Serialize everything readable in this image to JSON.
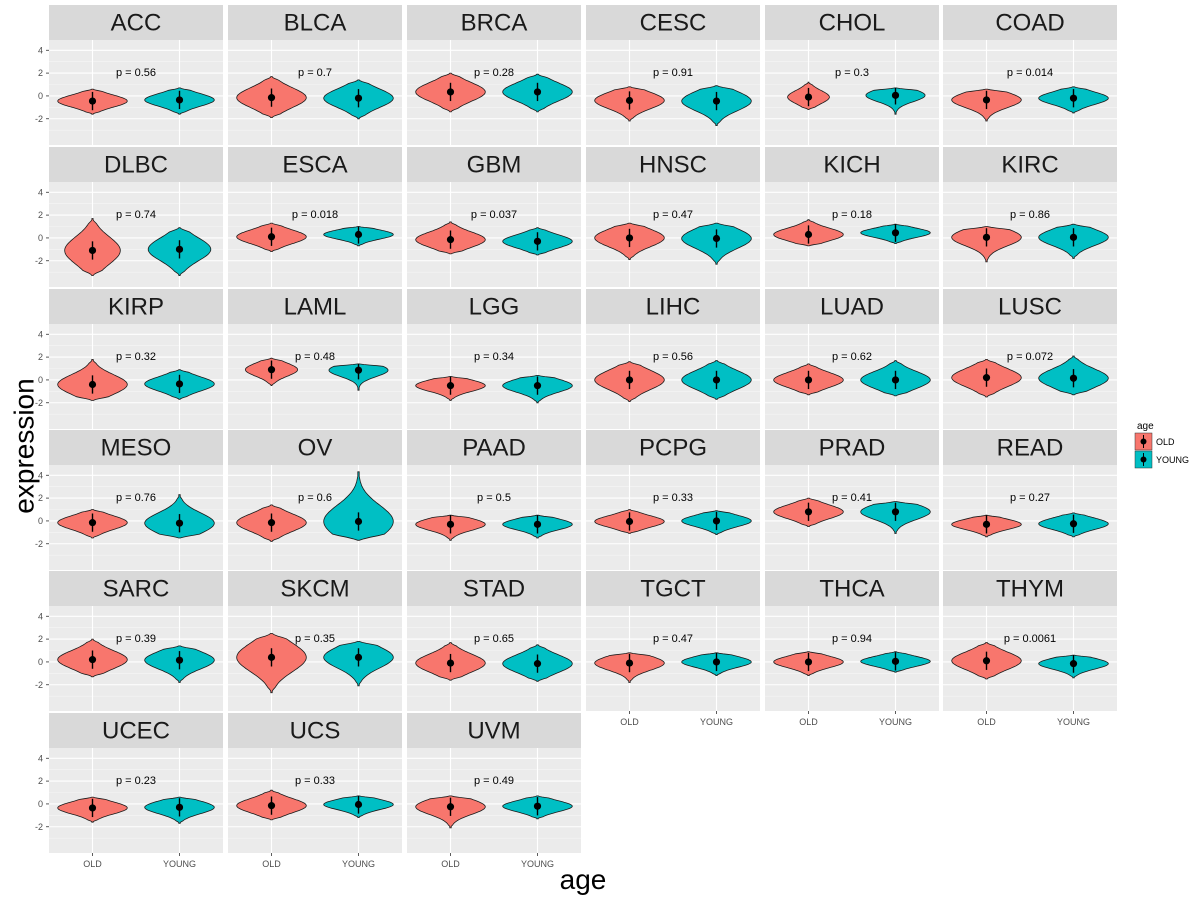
{
  "chart_data": {
    "type": "violin",
    "xlabel": "age",
    "ylabel": "expression",
    "ylim": [
      -4.3,
      4.9
    ],
    "yticks": [
      -2,
      0,
      2,
      4
    ],
    "ytick_labels": [
      "-2",
      "0",
      "2",
      "4"
    ],
    "categories": [
      "OLD",
      "YOUNG"
    ],
    "colors": {
      "OLD": "#F8766D",
      "YOUNG": "#00BFC4"
    },
    "legend": {
      "title": "age",
      "entries": [
        "OLD",
        "YOUNG"
      ],
      "position": "right"
    },
    "panels": [
      {
        "name": "ACC",
        "p": "p = 0.56",
        "old": {
          "median": -0.45,
          "min": -1.6,
          "max": 0.6,
          "width": 1.0
        },
        "young": {
          "median": -0.35,
          "min": -1.6,
          "max": 0.7,
          "width": 1.0
        }
      },
      {
        "name": "BLCA",
        "p": "p = 0.7",
        "old": {
          "median": -0.15,
          "min": -1.9,
          "max": 1.7,
          "width": 1.0
        },
        "young": {
          "median": -0.2,
          "min": -2.0,
          "max": 1.4,
          "width": 1.0
        }
      },
      {
        "name": "BRCA",
        "p": "p = 0.28",
        "old": {
          "median": 0.35,
          "min": -1.4,
          "max": 2.0,
          "width": 1.0
        },
        "young": {
          "median": 0.35,
          "min": -1.4,
          "max": 1.9,
          "width": 1.0
        }
      },
      {
        "name": "CESC",
        "p": "p = 0.91",
        "old": {
          "median": -0.4,
          "min": -2.2,
          "max": 0.8,
          "width": 1.0
        },
        "young": {
          "median": -0.45,
          "min": -2.6,
          "max": 0.9,
          "width": 1.0
        }
      },
      {
        "name": "CHOL",
        "p": "p = 0.3",
        "old": {
          "median": -0.1,
          "min": -1.2,
          "max": 1.2,
          "width": 0.6
        },
        "young": {
          "median": 0.05,
          "min": -1.6,
          "max": 0.7,
          "width": 0.85
        }
      },
      {
        "name": "COAD",
        "p": "p = 0.014",
        "old": {
          "median": -0.35,
          "min": -2.2,
          "max": 0.6,
          "width": 1.0
        },
        "young": {
          "median": -0.2,
          "min": -1.5,
          "max": 0.8,
          "width": 1.0
        }
      },
      {
        "name": "DLBC",
        "p": "p = 0.74",
        "old": {
          "median": -1.1,
          "min": -3.3,
          "max": 1.7,
          "width": 0.8
        },
        "young": {
          "median": -1.0,
          "min": -3.3,
          "max": 0.9,
          "width": 0.9
        }
      },
      {
        "name": "ESCA",
        "p": "p = 0.018",
        "old": {
          "median": 0.1,
          "min": -1.2,
          "max": 1.3,
          "width": 1.0
        },
        "young": {
          "median": 0.3,
          "min": -0.7,
          "max": 1.0,
          "width": 1.0
        }
      },
      {
        "name": "GBM",
        "p": "p = 0.037",
        "old": {
          "median": -0.15,
          "min": -1.4,
          "max": 1.4,
          "width": 1.0
        },
        "young": {
          "median": -0.3,
          "min": -1.5,
          "max": 0.9,
          "width": 1.0
        }
      },
      {
        "name": "HNSC",
        "p": "p = 0.47",
        "old": {
          "median": 0.0,
          "min": -1.9,
          "max": 1.3,
          "width": 1.0
        },
        "young": {
          "median": -0.05,
          "min": -2.3,
          "max": 1.3,
          "width": 1.0
        }
      },
      {
        "name": "KICH",
        "p": "p = 0.18",
        "old": {
          "median": 0.3,
          "min": -0.7,
          "max": 1.6,
          "width": 1.0
        },
        "young": {
          "median": 0.45,
          "min": -0.5,
          "max": 1.2,
          "width": 1.0
        }
      },
      {
        "name": "KIRC",
        "p": "p = 0.86",
        "old": {
          "median": 0.05,
          "min": -2.1,
          "max": 1.0,
          "width": 1.0
        },
        "young": {
          "median": 0.05,
          "min": -1.8,
          "max": 1.2,
          "width": 1.0
        }
      },
      {
        "name": "KIRP",
        "p": "p = 0.32",
        "old": {
          "median": -0.4,
          "min": -1.8,
          "max": 1.8,
          "width": 1.0
        },
        "young": {
          "median": -0.35,
          "min": -1.7,
          "max": 0.9,
          "width": 1.0
        }
      },
      {
        "name": "LAML",
        "p": "p = 0.48",
        "old": {
          "median": 0.9,
          "min": -0.5,
          "max": 1.9,
          "width": 0.75
        },
        "young": {
          "median": 0.85,
          "min": -0.9,
          "max": 1.4,
          "width": 0.85
        }
      },
      {
        "name": "LGG",
        "p": "p = 0.34",
        "old": {
          "median": -0.5,
          "min": -1.8,
          "max": 0.3,
          "width": 1.0
        },
        "young": {
          "median": -0.5,
          "min": -2.0,
          "max": 0.4,
          "width": 1.0
        }
      },
      {
        "name": "LIHC",
        "p": "p = 0.56",
        "old": {
          "median": 0.0,
          "min": -1.9,
          "max": 1.6,
          "width": 1.0
        },
        "young": {
          "median": 0.0,
          "min": -1.7,
          "max": 1.7,
          "width": 1.0
        }
      },
      {
        "name": "LUAD",
        "p": "p = 0.62",
        "old": {
          "median": 0.0,
          "min": -1.3,
          "max": 1.4,
          "width": 1.0
        },
        "young": {
          "median": 0.0,
          "min": -1.4,
          "max": 1.7,
          "width": 1.0
        }
      },
      {
        "name": "LUSC",
        "p": "p = 0.072",
        "old": {
          "median": 0.2,
          "min": -1.5,
          "max": 1.8,
          "width": 1.0
        },
        "young": {
          "median": 0.15,
          "min": -1.3,
          "max": 2.1,
          "width": 1.0
        }
      },
      {
        "name": "MESO",
        "p": "p = 0.76",
        "old": {
          "median": -0.15,
          "min": -1.5,
          "max": 1.0,
          "width": 1.0
        },
        "young": {
          "median": -0.2,
          "min": -1.5,
          "max": 2.3,
          "width": 1.0
        }
      },
      {
        "name": "OV",
        "p": "p = 0.6",
        "old": {
          "median": -0.15,
          "min": -1.8,
          "max": 1.4,
          "width": 1.0
        },
        "young": {
          "median": -0.05,
          "min": -1.7,
          "max": 4.3,
          "width": 1.0
        }
      },
      {
        "name": "PAAD",
        "p": "p = 0.5",
        "old": {
          "median": -0.3,
          "min": -1.7,
          "max": 0.5,
          "width": 1.0
        },
        "young": {
          "median": -0.3,
          "min": -1.5,
          "max": 0.5,
          "width": 1.0
        }
      },
      {
        "name": "PCPG",
        "p": "p = 0.33",
        "old": {
          "median": -0.05,
          "min": -1.1,
          "max": 1.0,
          "width": 1.0
        },
        "young": {
          "median": 0.0,
          "min": -1.2,
          "max": 0.9,
          "width": 1.0
        }
      },
      {
        "name": "PRAD",
        "p": "p = 0.41",
        "old": {
          "median": 0.8,
          "min": -0.5,
          "max": 2.0,
          "width": 1.0
        },
        "young": {
          "median": 0.8,
          "min": -1.1,
          "max": 1.7,
          "width": 1.0
        }
      },
      {
        "name": "READ",
        "p": "p = 0.27",
        "old": {
          "median": -0.3,
          "min": -1.4,
          "max": 0.5,
          "width": 1.0
        },
        "young": {
          "median": -0.25,
          "min": -1.4,
          "max": 0.7,
          "width": 1.0
        }
      },
      {
        "name": "SARC",
        "p": "p = 0.39",
        "old": {
          "median": 0.2,
          "min": -1.3,
          "max": 2.0,
          "width": 1.0
        },
        "young": {
          "median": 0.15,
          "min": -1.8,
          "max": 1.4,
          "width": 1.0
        }
      },
      {
        "name": "SKCM",
        "p": "p = 0.35",
        "old": {
          "median": 0.4,
          "min": -2.7,
          "max": 2.5,
          "width": 1.0
        },
        "young": {
          "median": 0.4,
          "min": -2.1,
          "max": 1.8,
          "width": 1.0
        }
      },
      {
        "name": "STAD",
        "p": "p = 0.65",
        "old": {
          "median": -0.1,
          "min": -1.6,
          "max": 1.7,
          "width": 1.0
        },
        "young": {
          "median": -0.15,
          "min": -1.7,
          "max": 1.5,
          "width": 1.0
        }
      },
      {
        "name": "TGCT",
        "p": "p = 0.47",
        "old": {
          "median": -0.1,
          "min": -1.8,
          "max": 0.8,
          "width": 1.0
        },
        "young": {
          "median": 0.0,
          "min": -1.2,
          "max": 0.8,
          "width": 1.0
        }
      },
      {
        "name": "THCA",
        "p": "p = 0.94",
        "old": {
          "median": 0.0,
          "min": -1.2,
          "max": 0.9,
          "width": 1.0
        },
        "young": {
          "median": 0.05,
          "min": -0.9,
          "max": 0.9,
          "width": 1.0
        }
      },
      {
        "name": "THYM",
        "p": "p = 0.0061",
        "old": {
          "median": 0.1,
          "min": -1.5,
          "max": 1.7,
          "width": 1.0
        },
        "young": {
          "median": -0.15,
          "min": -1.4,
          "max": 0.6,
          "width": 1.0
        }
      },
      {
        "name": "UCEC",
        "p": "p = 0.23",
        "old": {
          "median": -0.35,
          "min": -1.6,
          "max": 0.6,
          "width": 1.0
        },
        "young": {
          "median": -0.3,
          "min": -1.7,
          "max": 0.6,
          "width": 1.0
        }
      },
      {
        "name": "UCS",
        "p": "p = 0.33",
        "old": {
          "median": -0.15,
          "min": -1.4,
          "max": 1.2,
          "width": 1.0
        },
        "young": {
          "median": -0.05,
          "min": -1.2,
          "max": 0.7,
          "width": 1.0
        }
      },
      {
        "name": "UVM",
        "p": "p = 0.49",
        "old": {
          "median": -0.25,
          "min": -2.1,
          "max": 0.7,
          "width": 1.0
        },
        "young": {
          "median": -0.2,
          "min": -1.3,
          "max": 0.7,
          "width": 1.0
        }
      }
    ]
  }
}
